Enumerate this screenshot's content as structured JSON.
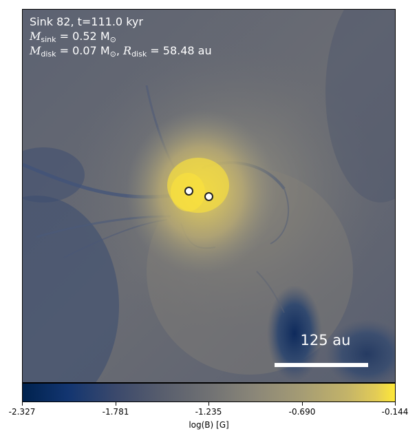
{
  "annotation": {
    "line1": "Sink 82, t=111.0 kyr",
    "msink_symbol": "M",
    "msink_sub": "sink",
    "msink_value": " = 0.52 M",
    "msink_unit_sym": "⊙",
    "mdisk_symbol": "M",
    "mdisk_sub": "disk",
    "mdisk_value": " = 0.07 M",
    "mdisk_unit_sym": "⊙",
    "sep": ", ",
    "rdisk_symbol": "R",
    "rdisk_sub": "disk",
    "rdisk_value": " = 58.48 au"
  },
  "scalebar": {
    "label": "125 au"
  },
  "colorbar": {
    "label": "log(B) [G]",
    "ticks": [
      "-2.327",
      "-1.781",
      "-1.235",
      "-0.690",
      "-0.144"
    ],
    "colormap": "cividis",
    "colors": {
      "low": "#00224e",
      "mid": "#707173",
      "high": "#fee838"
    }
  },
  "image": {
    "description_icon": "magnetic-field-map",
    "sinks_count": 2
  }
}
